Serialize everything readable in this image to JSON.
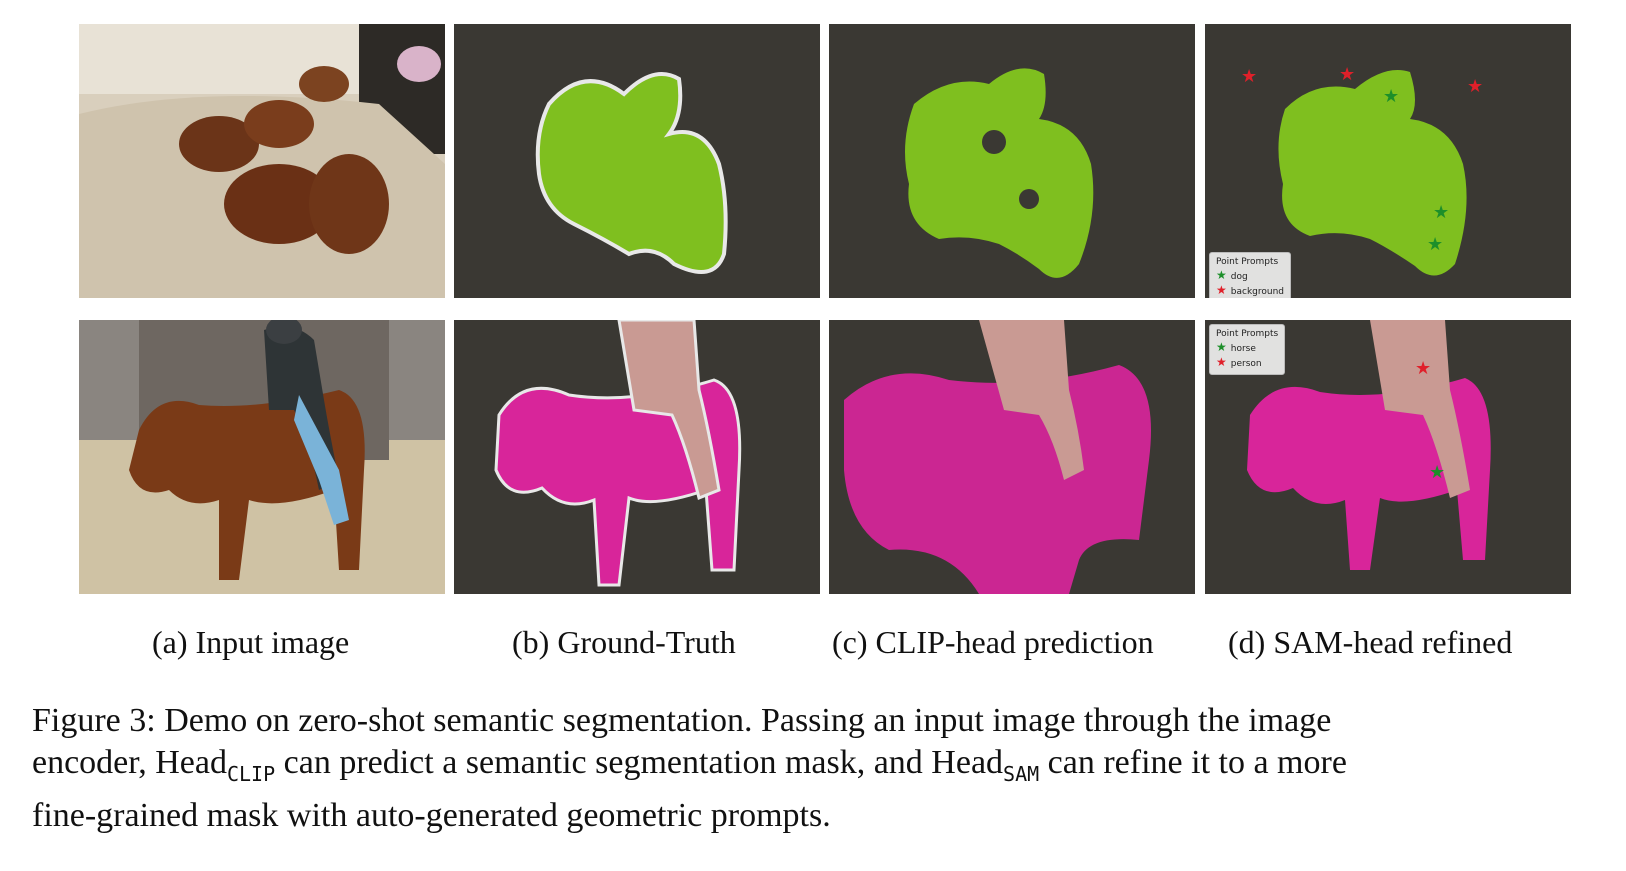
{
  "subfigures": [
    {
      "label": "(a) Input image"
    },
    {
      "label": "(b) Ground-Truth"
    },
    {
      "label": "(c) CLIP-head prediction"
    },
    {
      "label": "(d) SAM-head refined"
    }
  ],
  "legends": {
    "row1": {
      "title": "Point Prompts",
      "items": [
        {
          "label": "dog",
          "color": "#1d8f2a"
        },
        {
          "label": "background",
          "color": "#e0202a"
        }
      ]
    },
    "row2": {
      "title": "Point Prompts",
      "items": [
        {
          "label": "horse",
          "color": "#1d8f2a"
        },
        {
          "label": "person",
          "color": "#e0202a"
        }
      ]
    }
  },
  "caption": {
    "line1": "Figure 3: Demo on zero-shot semantic segmentation. Passing an input image through the image",
    "line2_a": "encoder, Head",
    "line2_sub1": "CLIP",
    "line2_b": "can predict a semantic segmentation mask, and Head",
    "line2_sub2": "SAM",
    "line2_c": "can refine it to a more",
    "line3": "fine-grained mask with auto-generated geometric prompts."
  },
  "colors": {
    "dog_mask": "#7fbf1f",
    "horse_mask": "#d8259a",
    "person_mask": "#c99a93",
    "dim_bg": "#3a3833"
  }
}
